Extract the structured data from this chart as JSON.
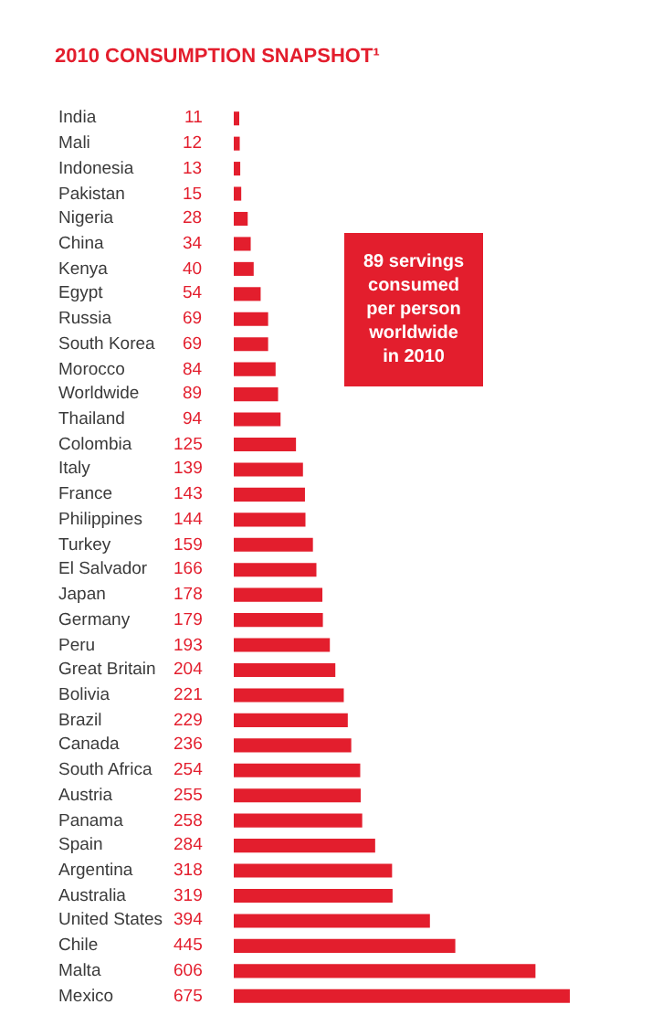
{
  "chart_data": {
    "type": "bar",
    "orientation": "horizontal",
    "title": "2010 CONSUMPTION SNAPSHOT¹",
    "categories": [
      "India",
      "Mali",
      "Indonesia",
      "Pakistan",
      "Nigeria",
      "China",
      "Kenya",
      "Egypt",
      "Russia",
      "South Korea",
      "Morocco",
      "Worldwide",
      "Thailand",
      "Colombia",
      "Italy",
      "France",
      "Philippines",
      "Turkey",
      "El Salvador",
      "Japan",
      "Germany",
      "Peru",
      "Great Britain",
      "Bolivia",
      "Brazil",
      "Canada",
      "South Africa",
      "Austria",
      "Panama",
      "Spain",
      "Argentina",
      "Australia",
      "United States",
      "Chile",
      "Malta",
      "Mexico"
    ],
    "values": [
      11,
      12,
      13,
      15,
      28,
      34,
      40,
      54,
      69,
      69,
      84,
      89,
      94,
      125,
      139,
      143,
      144,
      159,
      166,
      178,
      179,
      193,
      204,
      221,
      229,
      236,
      254,
      255,
      258,
      284,
      318,
      319,
      394,
      445,
      606,
      675
    ],
    "color": "#e31e2d",
    "xlim": [
      0,
      675
    ],
    "data_labels": true,
    "annotations": [
      "89 servings\nconsumed\nper person\nworldwide\nin 2010"
    ]
  }
}
